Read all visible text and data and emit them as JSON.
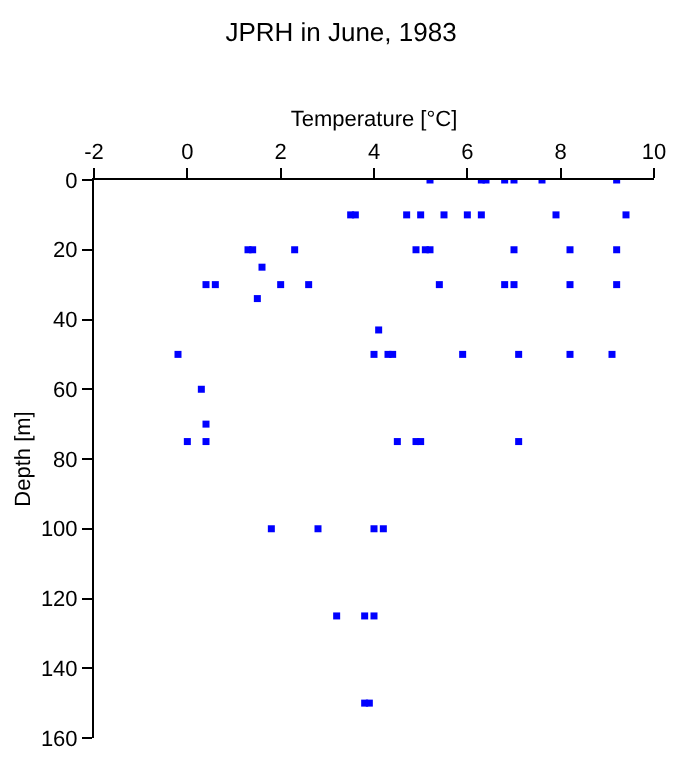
{
  "chart_data": {
    "type": "scatter",
    "title": "JPRH in June, 1983",
    "xlabel": "Temperature [°C]",
    "ylabel": "Depth [m]",
    "x": [
      5.2,
      6.3,
      6.4,
      6.8,
      7.0,
      7.6,
      9.2,
      3.5,
      3.6,
      4.7,
      5.0,
      5.5,
      6.0,
      6.3,
      7.9,
      9.4,
      1.3,
      1.4,
      2.3,
      4.9,
      5.1,
      5.2,
      7.0,
      8.2,
      9.2,
      1.6,
      0.4,
      0.6,
      2.0,
      2.6,
      5.4,
      6.8,
      7.0,
      8.2,
      9.2,
      1.5,
      4.1,
      -0.2,
      4.0,
      4.3,
      4.4,
      5.9,
      7.1,
      8.2,
      9.1,
      0.3,
      0.4,
      0.0,
      0.4,
      4.5,
      4.9,
      5.0,
      7.1,
      1.8,
      2.8,
      4.0,
      4.2,
      3.2,
      3.8,
      4.0,
      3.8,
      3.9
    ],
    "values": [
      0,
      0,
      0,
      0,
      0,
      0,
      0,
      10,
      10,
      10,
      10,
      10,
      10,
      10,
      10,
      10,
      20,
      20,
      20,
      20,
      20,
      20,
      20,
      20,
      20,
      25,
      30,
      30,
      30,
      30,
      30,
      30,
      30,
      30,
      30,
      34,
      43,
      50,
      50,
      50,
      50,
      50,
      50,
      50,
      50,
      60,
      70,
      75,
      75,
      75,
      75,
      75,
      75,
      100,
      100,
      100,
      100,
      125,
      125,
      125,
      150,
      150
    ],
    "color": "#0000ff",
    "marker": "square",
    "xlim": [
      -2,
      10
    ],
    "xticks": [
      -2,
      0,
      2,
      4,
      6,
      8,
      10
    ],
    "ylim": [
      160,
      0
    ],
    "yticks": [
      0,
      20,
      40,
      60,
      80,
      100,
      120,
      140,
      160
    ],
    "legend": false
  }
}
